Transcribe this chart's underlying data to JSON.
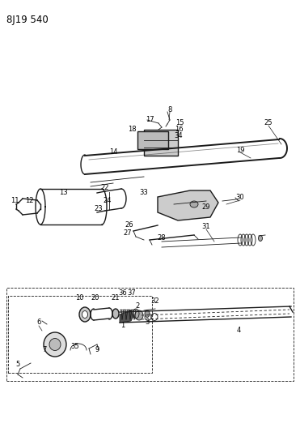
{
  "title": "8J19 540",
  "bg_color": "#ffffff",
  "line_color": "#1a1a1a",
  "fig_width": 3.71,
  "fig_height": 5.33,
  "dpi": 100,
  "label_fontsize": 6.0,
  "title_fontsize": 8.5
}
